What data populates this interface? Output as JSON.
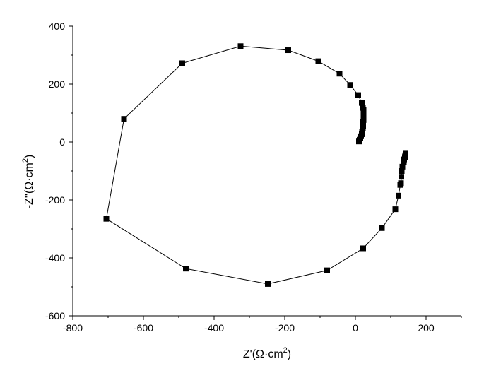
{
  "chart_data": {
    "type": "scatter",
    "title": "",
    "xlabel": "Z'(Ω·cm",
    "xlabel_sup": "2",
    "xlabel_end": ")",
    "ylabel": "-Z''(Ω·cm",
    "ylabel_sup": "2",
    "ylabel_end": ")",
    "xlim": [
      -800,
      300
    ],
    "ylim": [
      -600,
      400
    ],
    "x_ticks": [
      -800,
      -600,
      -400,
      -200,
      0,
      200
    ],
    "y_ticks": [
      -600,
      -400,
      -200,
      0,
      200,
      400
    ],
    "x_tick_labels": [
      "-800",
      "-600",
      "-400",
      "-200",
      "0",
      "200"
    ],
    "y_tick_labels": [
      "-600",
      "-400",
      "-200",
      "0",
      "200",
      "400"
    ],
    "grid": false,
    "marker": "square",
    "line_color": "#000000",
    "marker_color": "#000000",
    "series": [
      {
        "points": [
          [
            10,
            2
          ],
          [
            12,
            8
          ],
          [
            14,
            14
          ],
          [
            16,
            20
          ],
          [
            18,
            27
          ],
          [
            19,
            34
          ],
          [
            20,
            41
          ],
          [
            21,
            48
          ],
          [
            22,
            55
          ],
          [
            22,
            62
          ],
          [
            22,
            69
          ],
          [
            23,
            76
          ],
          [
            23,
            83
          ],
          [
            23,
            90
          ],
          [
            23,
            97
          ],
          [
            23,
            104
          ],
          [
            23,
            111
          ],
          [
            21,
            118
          ],
          [
            18,
            135
          ],
          [
            8,
            162
          ],
          [
            -15,
            197
          ],
          [
            -45,
            236
          ],
          [
            -105,
            279
          ],
          [
            -190,
            317
          ],
          [
            -325,
            331
          ],
          [
            -490,
            272
          ],
          [
            -655,
            80
          ],
          [
            -705,
            -265
          ],
          [
            -480,
            -437
          ],
          [
            -248,
            -490
          ],
          [
            -80,
            -443
          ],
          [
            22,
            -367
          ],
          [
            75,
            -297
          ],
          [
            113,
            -232
          ],
          [
            122,
            -185
          ],
          [
            127,
            -148
          ],
          [
            129,
            -142
          ],
          [
            130,
            -120
          ],
          [
            131,
            -100
          ],
          [
            133,
            -85
          ],
          [
            137,
            -70
          ],
          [
            138,
            -60
          ],
          [
            140,
            -52
          ],
          [
            141,
            -46
          ],
          [
            142,
            -40
          ]
        ]
      }
    ]
  }
}
